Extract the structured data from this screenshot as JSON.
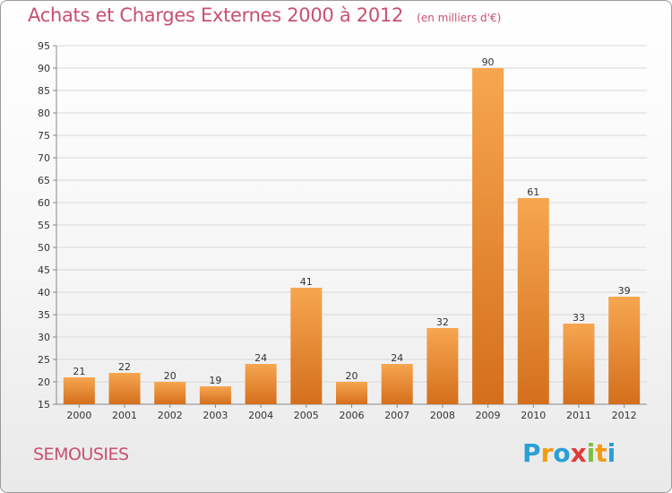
{
  "title": "Achats et Charges Externes 2000 à 2012",
  "unit_note": "(en milliers d'€)",
  "commune": "SEMOUSIES",
  "brand": {
    "letters": [
      "P",
      "r",
      "o",
      "x",
      "i",
      "t",
      "i"
    ],
    "colors": [
      "#2a9fd6",
      "#f39c12",
      "#2a9fd6",
      "#e03b3b",
      "#7ac143",
      "#f39c12",
      "#2a9fd6"
    ]
  },
  "colors": {
    "title": "#c8506e",
    "bar_top": "#f7a650",
    "bar_bottom": "#d46f1c",
    "grid": "#d8d8d8"
  },
  "chart_data": {
    "type": "bar",
    "categories": [
      "2000",
      "2001",
      "2002",
      "2003",
      "2004",
      "2005",
      "2006",
      "2007",
      "2008",
      "2009",
      "2010",
      "2011",
      "2012"
    ],
    "values": [
      21,
      22,
      20,
      19,
      24,
      41,
      20,
      24,
      32,
      90,
      61,
      33,
      39
    ],
    "ylim": [
      15,
      95
    ],
    "yticks": [
      15,
      20,
      25,
      30,
      35,
      40,
      45,
      50,
      55,
      60,
      65,
      70,
      75,
      80,
      85,
      90,
      95
    ],
    "grid": true,
    "title": "Achats et Charges Externes 2000 à 2012",
    "xlabel": "",
    "ylabel": ""
  }
}
